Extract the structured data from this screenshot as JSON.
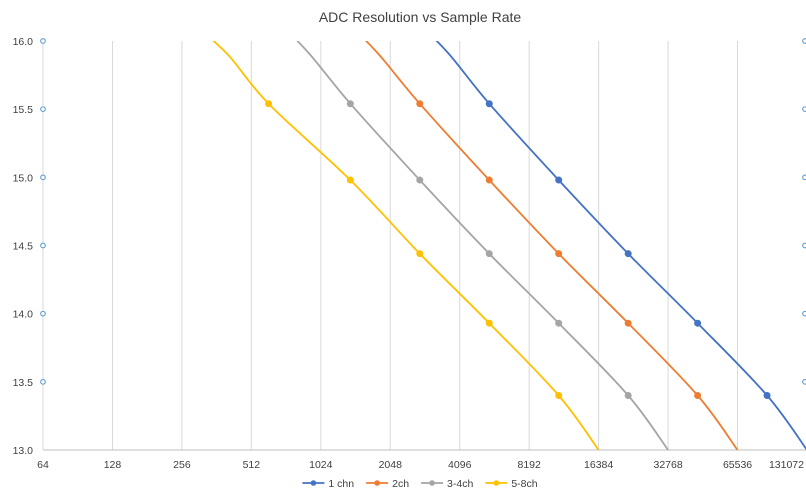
{
  "chart_data": {
    "type": "line",
    "title": "ADC Resolution vs Sample Rate",
    "xlabel": "",
    "ylabel": "",
    "x_scale": "log2",
    "xlim": [
      64,
      131072
    ],
    "ylim": [
      13.0,
      16.0
    ],
    "x_ticks": [
      64,
      128,
      256,
      512,
      1024,
      2048,
      4096,
      8192,
      16384,
      32768,
      65536,
      131072
    ],
    "x_tick_labels": [
      "64",
      "128",
      "256",
      "512",
      "1024",
      "2048",
      "4096",
      "8192",
      "16384",
      "32768",
      "65536",
      "131072"
    ],
    "y_ticks": [
      13.0,
      13.5,
      14.0,
      14.5,
      15.0,
      15.5,
      16.0
    ],
    "y_tick_labels": [
      "13.0",
      "13.5",
      "14.0",
      "14.5",
      "15.0",
      "15.5",
      "16.0"
    ],
    "grid": "vertical",
    "legend_position": "bottom",
    "series": [
      {
        "name": "1 chn",
        "color": "#4472c4",
        "x": [
          2765,
          3700,
          5500,
          11000,
          22000,
          44000,
          88000,
          131072
        ],
        "y": [
          16.12,
          15.9,
          15.54,
          14.98,
          14.44,
          13.93,
          13.4,
          13.0
        ]
      },
      {
        "name": "2ch",
        "color": "#ed7d31",
        "x": [
          1370,
          1830,
          2750,
          5500,
          11000,
          22000,
          44000,
          65536
        ],
        "y": [
          16.12,
          15.9,
          15.54,
          14.98,
          14.44,
          13.93,
          13.4,
          13.0
        ]
      },
      {
        "name": "3-4ch",
        "color": "#a5a5a5",
        "x": [
          690,
          920,
          1375,
          2750,
          5500,
          11000,
          22000,
          32768
        ],
        "y": [
          16.12,
          15.9,
          15.54,
          14.98,
          14.44,
          13.93,
          13.4,
          13.0
        ]
      },
      {
        "name": "5-8ch",
        "color": "#ffc000",
        "x": [
          290,
          405,
          608,
          1375,
          2750,
          5500,
          11000,
          16384
        ],
        "y": [
          16.12,
          15.9,
          15.54,
          14.98,
          14.44,
          13.93,
          13.4,
          13.0
        ]
      }
    ],
    "markers": [
      {
        "series": 0,
        "x": [
          5500,
          11000,
          22000,
          44000,
          88000
        ],
        "y": [
          15.54,
          14.98,
          14.44,
          13.93,
          13.4
        ]
      },
      {
        "series": 1,
        "x": [
          2750,
          5500,
          11000,
          22000,
          44000
        ],
        "y": [
          15.54,
          14.98,
          14.44,
          13.93,
          13.4
        ]
      },
      {
        "series": 2,
        "x": [
          1375,
          2750,
          5500,
          11000,
          22000
        ],
        "y": [
          15.54,
          14.98,
          14.44,
          13.93,
          13.4
        ]
      },
      {
        "series": 3,
        "x": [
          608,
          1375,
          2750,
          5500,
          11000
        ],
        "y": [
          15.54,
          14.98,
          14.44,
          13.93,
          13.4
        ]
      }
    ]
  }
}
